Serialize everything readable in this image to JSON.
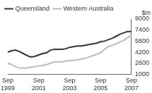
{
  "chart_data": {
    "type": "line",
    "categories": [
      "Sep 1999",
      null,
      null,
      null,
      null,
      null,
      null,
      null,
      "Sep 2001",
      null,
      null,
      null,
      null,
      null,
      null,
      null,
      "Sep 2003",
      null,
      null,
      null,
      null,
      null,
      null,
      null,
      "Sep 2005",
      null,
      null,
      null,
      null,
      null,
      null,
      null,
      "Sep 2007"
    ],
    "series": [
      {
        "name": "Queensland",
        "color": "#333333",
        "values": [
          4200,
          4400,
          4500,
          4300,
          4000,
          3700,
          3500,
          3600,
          3800,
          4000,
          4100,
          4500,
          4600,
          4600,
          4600,
          4700,
          4900,
          5000,
          5100,
          5100,
          5200,
          5300,
          5400,
          5500,
          5700,
          5800,
          6000,
          6200,
          6500,
          6800,
          7000,
          7200,
          7200
        ]
      },
      {
        "name": "Western Australia",
        "color": "#bbbbbb",
        "values": [
          2600,
          2400,
          2100,
          1900,
          1900,
          1900,
          2000,
          2100,
          2200,
          2300,
          2400,
          2600,
          2800,
          2800,
          2800,
          2900,
          3000,
          3000,
          3100,
          3200,
          3300,
          3500,
          3700,
          3900,
          4100,
          4600,
          5000,
          5200,
          5400,
          5700,
          5900,
          6300,
          6600
        ]
      }
    ],
    "y_label": "$m",
    "ylim": [
      1000,
      9000
    ],
    "yticks": [
      1000,
      2600,
      4200,
      5800,
      7400,
      9000
    ],
    "grid": false,
    "legend": "top-left"
  }
}
